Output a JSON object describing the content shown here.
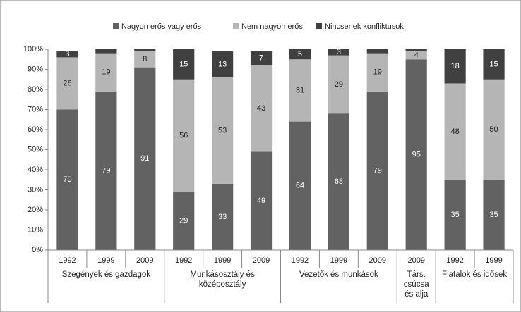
{
  "chart_data": {
    "type": "stacked_bar_100",
    "groups": [
      {
        "name": "Szegények és gazdagok",
        "categories": [
          "1992",
          "1999",
          "2009"
        ]
      },
      {
        "name": "Munkásosztály és középosztály",
        "categories": [
          "1992",
          "1999",
          "2009"
        ]
      },
      {
        "name": "Vezetők és munkások",
        "categories": [
          "1992",
          "1999",
          "2009"
        ]
      },
      {
        "name": "Társ. csúcsa és alja",
        "categories": [
          "2009"
        ]
      },
      {
        "name": "Fiatalok és idősek",
        "categories": [
          "1992",
          "1999"
        ]
      }
    ],
    "series": [
      {
        "name": "Nagyon erős vagy erős",
        "color": "#626262",
        "values": [
          70,
          79,
          91,
          29,
          33,
          49,
          64,
          68,
          79,
          95,
          35,
          35
        ]
      },
      {
        "name": "Nem nagyon erős",
        "color": "#b5b5b5",
        "values": [
          26,
          19,
          8,
          56,
          53,
          43,
          31,
          29,
          19,
          4,
          48,
          50
        ]
      },
      {
        "name": "Nincsenek konfliktusok",
        "color": "#404040",
        "values": [
          3,
          2,
          1,
          15,
          13,
          7,
          5,
          3,
          2,
          1,
          18,
          15
        ]
      }
    ],
    "ylim": [
      0,
      100
    ],
    "yticks": [
      {
        "value": 0,
        "label": "0%"
      },
      {
        "value": 10,
        "label": "10%"
      },
      {
        "value": 20,
        "label": "20%"
      },
      {
        "value": 30,
        "label": "30%"
      },
      {
        "value": 40,
        "label": "40%"
      },
      {
        "value": 50,
        "label": "50%"
      },
      {
        "value": 60,
        "label": "60%"
      },
      {
        "value": 70,
        "label": "70%"
      },
      {
        "value": 80,
        "label": "80%"
      },
      {
        "value": 90,
        "label": "90%"
      },
      {
        "value": 100,
        "label": "100%"
      }
    ],
    "legend": "top"
  }
}
